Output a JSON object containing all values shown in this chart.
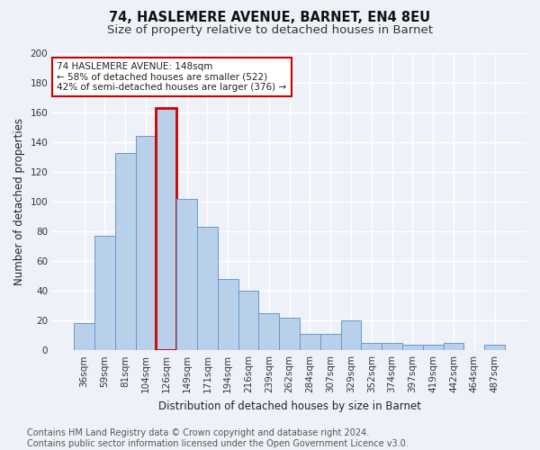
{
  "title_line1": "74, HASLEMERE AVENUE, BARNET, EN4 8EU",
  "title_line2": "Size of property relative to detached houses in Barnet",
  "xlabel": "Distribution of detached houses by size in Barnet",
  "ylabel": "Number of detached properties",
  "categories": [
    "36sqm",
    "59sqm",
    "81sqm",
    "104sqm",
    "126sqm",
    "149sqm",
    "171sqm",
    "194sqm",
    "216sqm",
    "239sqm",
    "262sqm",
    "284sqm",
    "307sqm",
    "329sqm",
    "352sqm",
    "374sqm",
    "397sqm",
    "419sqm",
    "442sqm",
    "464sqm",
    "487sqm"
  ],
  "values": [
    18,
    77,
    133,
    144,
    163,
    102,
    83,
    48,
    40,
    25,
    22,
    11,
    11,
    20,
    5,
    5,
    4,
    4,
    5,
    0,
    4
  ],
  "bar_color": "#b8d0ea",
  "bar_edge_color": "#6699cc",
  "highlight_index": 4,
  "highlight_edge_color": "#cc0000",
  "annotation_text": "74 HASLEMERE AVENUE: 148sqm\n← 58% of detached houses are smaller (522)\n42% of semi-detached houses are larger (376) →",
  "annotation_box_color": "#ffffff",
  "annotation_box_edge_color": "#cc0000",
  "footer_text": "Contains HM Land Registry data © Crown copyright and database right 2024.\nContains public sector information licensed under the Open Government Licence v3.0.",
  "ylim": [
    0,
    200
  ],
  "yticks": [
    0,
    20,
    40,
    60,
    80,
    100,
    120,
    140,
    160,
    180,
    200
  ],
  "background_color": "#eef2f8",
  "grid_color": "#ffffff",
  "title_fontsize": 10.5,
  "subtitle_fontsize": 9.5,
  "axis_label_fontsize": 8.5,
  "tick_fontsize": 7.5,
  "footer_fontsize": 7.0
}
